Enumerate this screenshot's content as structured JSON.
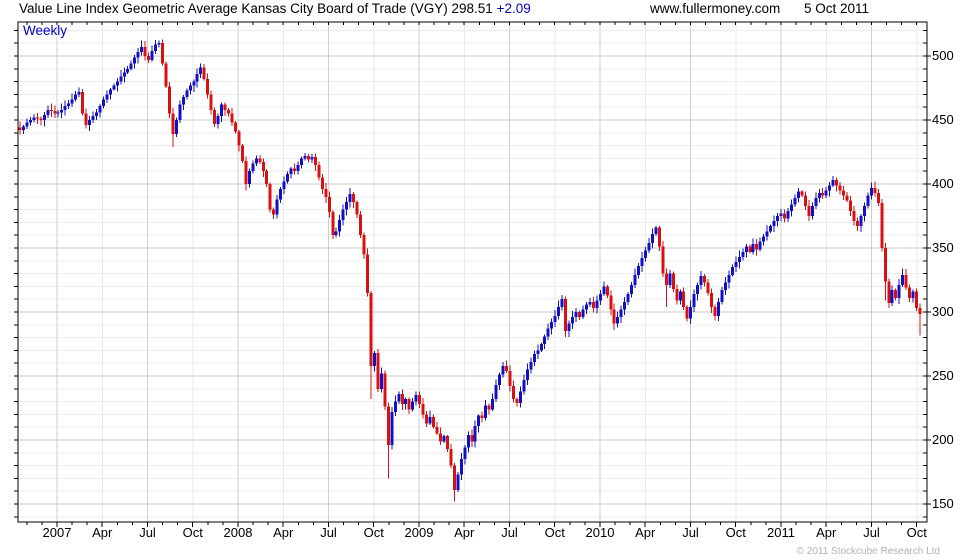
{
  "header": {
    "title": "Value Line Index Geometric Average Kansas City Board of Trade (VGY)",
    "price": "298.51",
    "change": "+2.09",
    "website": "www.fullermoney.com",
    "date": "5 Oct 2011"
  },
  "chart": {
    "frequency_label": "Weekly",
    "copyright": "© 2011 Stockcube Research Ltd"
  },
  "chart_data": {
    "type": "candlestick",
    "frequency": "weekly",
    "title": "Value Line Index Geometric Average Kansas City Board of Trade (VGY)",
    "period": "Oct 2006 - 5 Oct 2011",
    "last_close": 298.51,
    "last_change": 2.09,
    "x_axis": {
      "labels": [
        "2007",
        "Apr",
        "Jul",
        "Oct",
        "2008",
        "Apr",
        "Jul",
        "Oct",
        "2009",
        "Apr",
        "Jul",
        "Oct",
        "2010",
        "Apr",
        "Jul",
        "Oct",
        "2011",
        "Apr",
        "Jul",
        "Oct"
      ],
      "minor_ticks": "monthly",
      "gridlines": "quarterly (Jan/Jul emphasized)"
    },
    "y_axis": {
      "ticks": [
        500,
        450,
        400,
        350,
        300,
        250,
        200,
        150
      ],
      "minor_step": 10,
      "major_step": 50,
      "position": "right",
      "visible_range": [
        136,
        526.5
      ]
    },
    "colors": {
      "up_candle": "#1010c8",
      "down_candle": "#d81010",
      "grid_major": "#c8c8c8",
      "grid_minor": "#ececec",
      "grid_vert_semi": "#cfcfcf",
      "grid_vert_quarter": "#e9e9e9",
      "frame": "#000000",
      "accent_blue": "#0000cc"
    },
    "first_open": 444,
    "weekly_close": [
      442,
      445,
      448,
      450,
      452,
      451,
      450,
      454,
      458,
      457,
      455,
      456,
      458,
      461,
      463,
      466,
      470,
      472,
      455,
      446,
      450,
      453,
      456,
      461,
      466,
      470,
      474,
      477,
      480,
      484,
      487,
      490,
      494,
      499,
      503,
      507,
      500,
      497,
      504,
      509,
      510,
      494,
      476,
      455,
      439,
      450,
      462,
      468,
      473,
      477,
      480,
      486,
      491,
      482,
      470,
      458,
      447,
      453,
      462,
      458,
      455,
      448,
      441,
      430,
      418,
      400,
      410,
      416,
      420,
      417,
      410,
      400,
      380,
      376,
      388,
      396,
      402,
      408,
      412,
      410,
      415,
      420,
      422,
      419,
      421,
      415,
      405,
      396,
      390,
      378,
      360,
      363,
      372,
      380,
      386,
      392,
      386,
      376,
      360,
      345,
      315,
      258,
      268,
      240,
      252,
      226,
      196,
      222,
      230,
      236,
      228,
      232,
      224,
      230,
      235,
      228,
      220,
      213,
      218,
      210,
      205,
      199,
      203,
      193,
      180,
      161,
      173,
      185,
      194,
      204,
      199,
      211,
      219,
      217,
      227,
      224,
      232,
      243,
      251,
      258,
      254,
      242,
      232,
      229,
      238,
      247,
      255,
      261,
      267,
      270,
      275,
      281,
      287,
      292,
      297,
      304,
      310,
      285,
      291,
      296,
      300,
      296,
      302,
      306,
      308,
      303,
      309,
      314,
      320,
      313,
      302,
      291,
      296,
      302,
      308,
      314,
      321,
      329,
      336,
      342,
      348,
      354,
      361,
      366,
      351,
      330,
      321,
      330,
      318,
      309,
      316,
      304,
      295,
      304,
      314,
      321,
      328,
      323,
      315,
      304,
      297,
      308,
      317,
      323,
      329,
      335,
      339,
      343,
      347,
      351,
      347,
      353,
      349,
      355,
      359,
      363,
      367,
      371,
      375,
      377,
      373,
      379,
      384,
      389,
      394,
      391,
      383,
      375,
      383,
      389,
      393,
      391,
      395,
      399,
      403,
      399,
      395,
      391,
      387,
      379,
      371,
      367,
      375,
      383,
      391,
      397,
      393,
      385,
      350,
      324,
      307,
      317,
      311,
      321,
      329,
      319,
      311,
      316,
      303,
      298.5
    ],
    "wick_overrides": {
      "40": {
        "high": 512
      },
      "44": {
        "low": 429
      },
      "101": {
        "low": 232
      },
      "106": {
        "low": 170
      },
      "125": {
        "low": 152
      },
      "171": {
        "low": 286
      },
      "186": {
        "low": 304
      },
      "249": {
        "low": 309
      },
      "259": {
        "low": 281.5
      }
    }
  }
}
